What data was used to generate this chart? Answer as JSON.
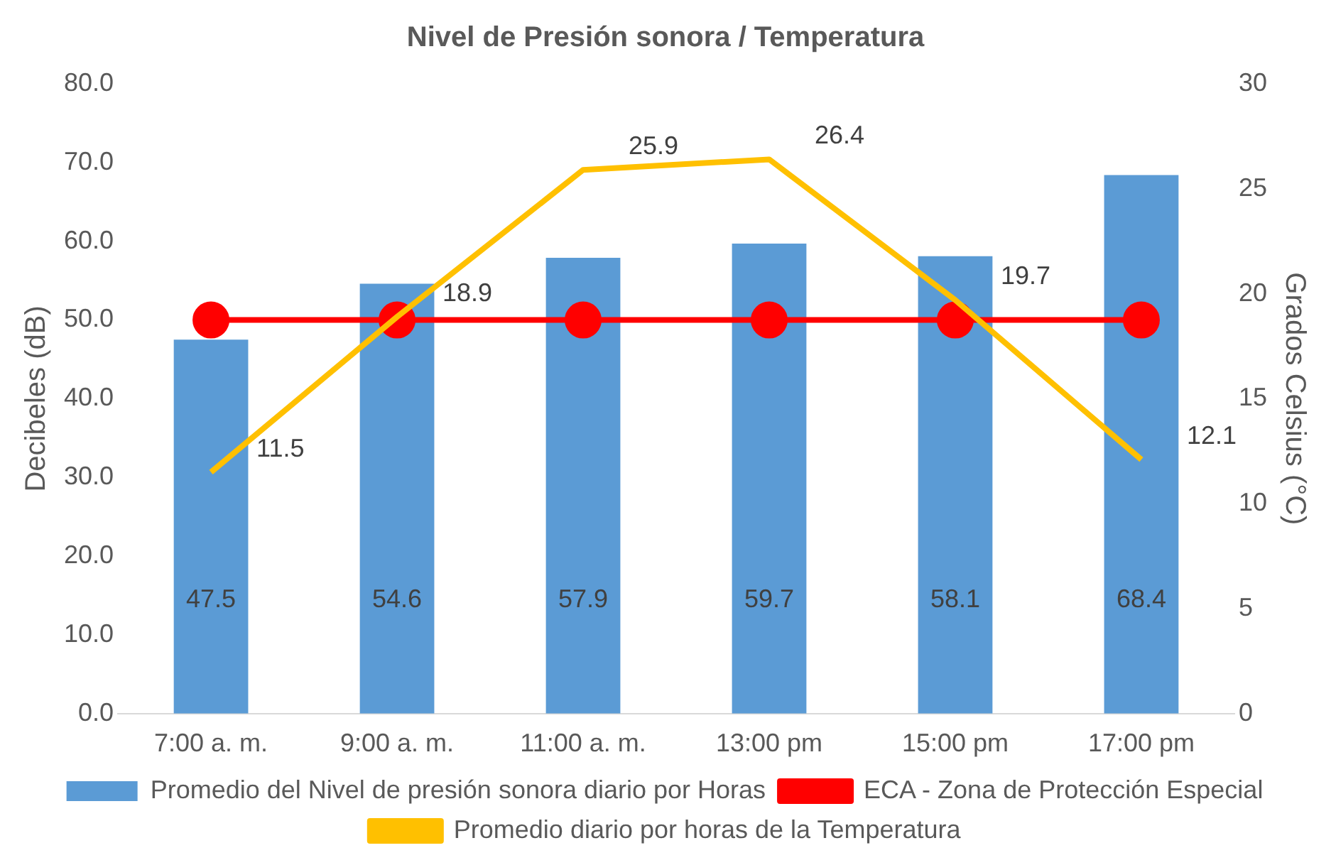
{
  "chart_data": {
    "type": "bar",
    "title": "Nivel de Presión sonora / Temperatura",
    "ylabel": "Decibeles (dB)",
    "y2label": "Grados Celsius (°C)",
    "categories": [
      "7:00 a. m.",
      "9:00 a. m.",
      "11:00 a. m.",
      "13:00 pm",
      "15:00 pm",
      "17:00 pm"
    ],
    "series": [
      {
        "name": "Promedio del Nivel de presión sonora diario por Horas",
        "color": "#5b9bd5",
        "values": [
          47.5,
          54.6,
          57.9,
          59.7,
          58.1,
          68.4
        ],
        "value_labels": [
          "47.5",
          "54.6",
          "57.9",
          "59.7",
          "58.1",
          "68.4"
        ]
      },
      {
        "name": "ECA - Zona de Protección Especial",
        "type": "line",
        "color": "#ff0000",
        "marker": "circle",
        "values": [
          50,
          50,
          50,
          50,
          50,
          50
        ]
      },
      {
        "name": "Promedio diario por horas de la Temperatura",
        "type": "line",
        "axis": "y2",
        "color": "#ffc000",
        "marker": "none",
        "values": [
          11.5,
          18.9,
          25.9,
          26.4,
          19.7,
          12.1
        ],
        "value_labels": [
          "11.5",
          "18.9",
          "25.9",
          "26.4",
          "19.7",
          "12.1"
        ]
      }
    ],
    "ylim": [
      0,
      80
    ],
    "yticks": [
      {
        "value": 0,
        "label": "0.0"
      },
      {
        "value": 10,
        "label": "10.0"
      },
      {
        "value": 20,
        "label": "20.0"
      },
      {
        "value": 30,
        "label": "30.0"
      },
      {
        "value": 40,
        "label": "40.0"
      },
      {
        "value": 50,
        "label": "50.0"
      },
      {
        "value": 60,
        "label": "60.0"
      },
      {
        "value": 70,
        "label": "70.0"
      },
      {
        "value": 80,
        "label": "80.0"
      }
    ],
    "y2lim": [
      0,
      30
    ],
    "y2ticks": [
      0,
      5,
      10,
      15,
      20,
      25,
      30
    ],
    "legend": "bottom"
  }
}
